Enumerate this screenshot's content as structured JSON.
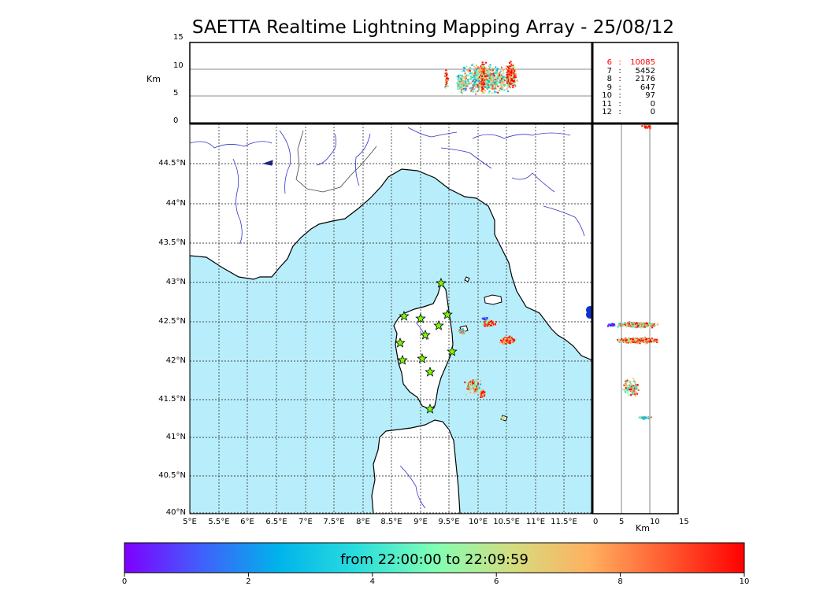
{
  "title": "SAETTA Realtime Lightning Mapping Array - 25/08/12",
  "altitude_axis": {
    "unit": "Km",
    "ticks": [
      "15",
      "10",
      "5",
      "0"
    ],
    "ticks_right_panel": [
      "0",
      "5",
      "10",
      "15"
    ]
  },
  "map": {
    "lat_ticks": [
      "44.5°N",
      "44°N",
      "43.5°N",
      "43°N",
      "42.5°N",
      "42°N",
      "41.5°N",
      "41°N",
      "40.5°N",
      "40°N"
    ],
    "lon_ticks": [
      "5°E",
      "5.5°E",
      "6°E",
      "6.5°E",
      "7°E",
      "7.5°E",
      "8°E",
      "8.5°E",
      "9°E",
      "9.5°E",
      "10°E",
      "10.5°E",
      "11°E",
      "11.5°E"
    ],
    "sea_color": "#b8eefb",
    "land_color": "#ffffff",
    "river_color": "#3333cc",
    "station_marker": "star-icon",
    "station_color": "#7cfc00",
    "station_count": 12
  },
  "station_counts": [
    {
      "id": "6",
      "sep": ":",
      "count": "10085",
      "color": "#ff0000"
    },
    {
      "id": "7",
      "sep": ":",
      "count": "5452",
      "color": "#000000"
    },
    {
      "id": "8",
      "sep": ":",
      "count": "2176",
      "color": "#000000"
    },
    {
      "id": "9",
      "sep": ":",
      "count": "647",
      "color": "#000000"
    },
    {
      "id": "10",
      "sep": ":",
      "count": "97",
      "color": "#000000"
    },
    {
      "id": "11",
      "sep": ":",
      "count": "0",
      "color": "#000000"
    },
    {
      "id": "12",
      "sep": ":",
      "count": "0",
      "color": "#000000"
    }
  ],
  "colorbar": {
    "label": "from 22:00:00 to 22:09:59",
    "ticks": [
      "0",
      "2",
      "4",
      "6",
      "8",
      "10"
    ],
    "colors": [
      "#7f00ff",
      "#4060fb",
      "#00b4eb",
      "#2adddd",
      "#80ffb4",
      "#d4dd80",
      "#ffb060",
      "#ff5a30",
      "#ff0000"
    ]
  }
}
